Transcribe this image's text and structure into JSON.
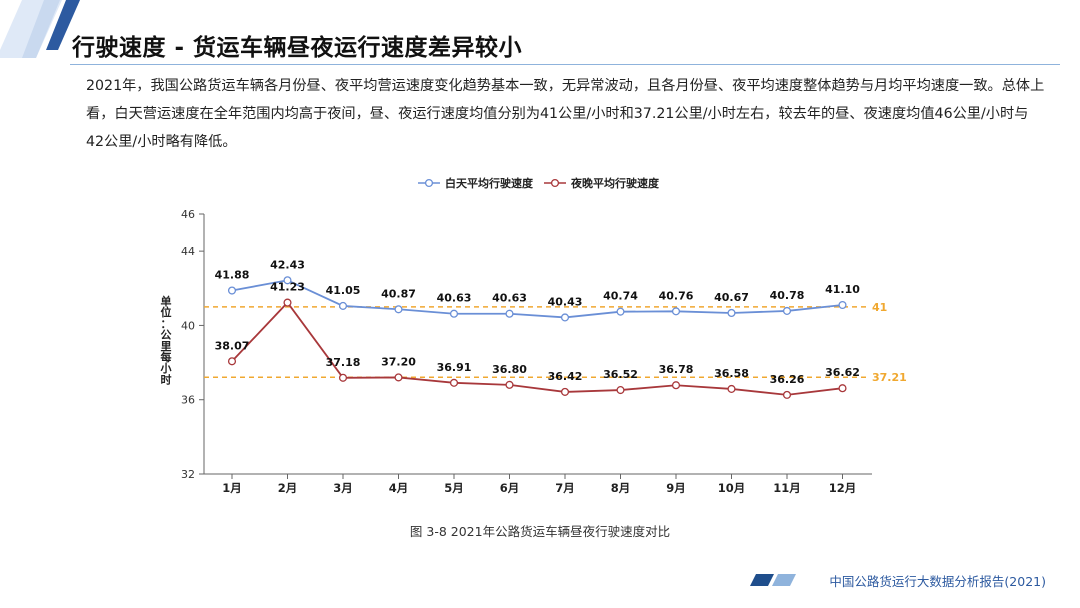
{
  "header": {
    "title": "行驶速度 - 货运车辆昼夜运行速度差异较小"
  },
  "summary": "2021年，我国公路货运车辆各月份昼、夜平均营运速度变化趋势基本一致，无异常波动，且各月份昼、夜平均速度整体趋势与月均平均速度一致。总体上看，白天营运速度在全年范围内均高于夜间，昼、夜运行速度均值分别为41公里/小时和37.21公里/小时左右，较去年的昼、夜速度均值46公里/小时与42公里/小时略有降低。",
  "caption": "图 3-8 2021年公路货运车辆昼夜行驶速度对比",
  "footer": {
    "text": "中国公路货运行大数据分析报告(2021)"
  },
  "colors": {
    "day": "#6a8fd6",
    "night": "#a8383b",
    "reference": "#f0a830",
    "accent": "#1f4e8c"
  },
  "chart_data": {
    "type": "line",
    "title": "",
    "xlabel": "",
    "ylabel": "单位：公里每小时",
    "categories": [
      "1月",
      "2月",
      "3月",
      "4月",
      "5月",
      "6月",
      "7月",
      "8月",
      "9月",
      "10月",
      "11月",
      "12月"
    ],
    "ylim": [
      32,
      46
    ],
    "yticks": [
      32,
      36,
      40,
      44,
      46
    ],
    "legend_position": "top-center",
    "grid": false,
    "series": [
      {
        "name": "白天平均行驶速度",
        "values": [
          41.88,
          42.43,
          41.05,
          40.87,
          40.63,
          40.63,
          40.43,
          40.74,
          40.76,
          40.67,
          40.78,
          41.1
        ],
        "labels": [
          "41.88",
          "42.43",
          "41.05",
          "40.87",
          "40.63",
          "40.63",
          "40.43",
          "40.74",
          "40.76",
          "40.67",
          "40.78",
          "41.10"
        ]
      },
      {
        "name": "夜晚平均行驶速度",
        "values": [
          38.07,
          41.23,
          37.18,
          37.2,
          36.91,
          36.8,
          36.42,
          36.52,
          36.78,
          36.58,
          36.26,
          36.62
        ],
        "labels": [
          "38.07",
          "41.23",
          "37.18",
          "37.20",
          "36.91",
          "36.80",
          "36.42",
          "36.52",
          "36.78",
          "36.58",
          "36.26",
          "36.62"
        ]
      }
    ],
    "reference_lines": [
      {
        "value": 41,
        "label": "41"
      },
      {
        "value": 37.21,
        "label": "37.21"
      }
    ]
  }
}
